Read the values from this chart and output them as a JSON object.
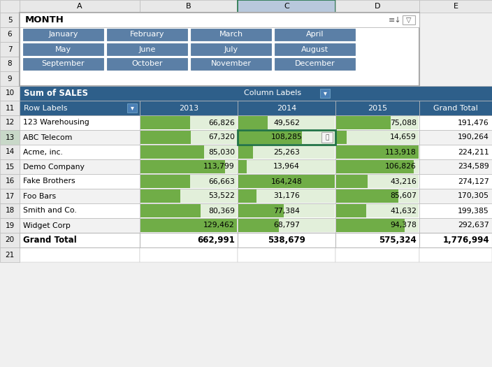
{
  "months": [
    "January",
    "February",
    "March",
    "April",
    "May",
    "June",
    "July",
    "August",
    "September",
    "October",
    "November",
    "December"
  ],
  "companies": [
    "123 Warehousing",
    "ABC Telecom",
    "Acme, inc.",
    "Demo Company",
    "Fake Brothers",
    "Foo Bars",
    "Smith and Co.",
    "Widget Corp"
  ],
  "data_2013": [
    66826,
    67320,
    85030,
    113799,
    66663,
    53522,
    80369,
    129462
  ],
  "data_2014": [
    49562,
    108285,
    25263,
    13964,
    164248,
    31176,
    77384,
    68797
  ],
  "data_2015": [
    75088,
    14659,
    113918,
    106826,
    43216,
    85607,
    41632,
    94378
  ],
  "grand_totals": [
    191476,
    190264,
    224211,
    234589,
    274127,
    170305,
    199385,
    292637
  ],
  "col_totals_2013": 662991,
  "col_totals_2014": 538679,
  "col_totals_2015": 575324,
  "grand_total_total": 1776994,
  "header_bg": "#2E5F8A",
  "month_btn_bg": "#5B7FA6",
  "bar_color": "#70AD47",
  "bar_bg": "#E2EFDA",
  "border_color": "#BBBBBB",
  "excel_bg": "#F0F0F0",
  "row_header_bg": "#E8E8E8",
  "col_hdr_selected_bg": "#C8D4E8",
  "selected_cell_border": "#217346",
  "row_sel_bg": "#D6E4F0"
}
